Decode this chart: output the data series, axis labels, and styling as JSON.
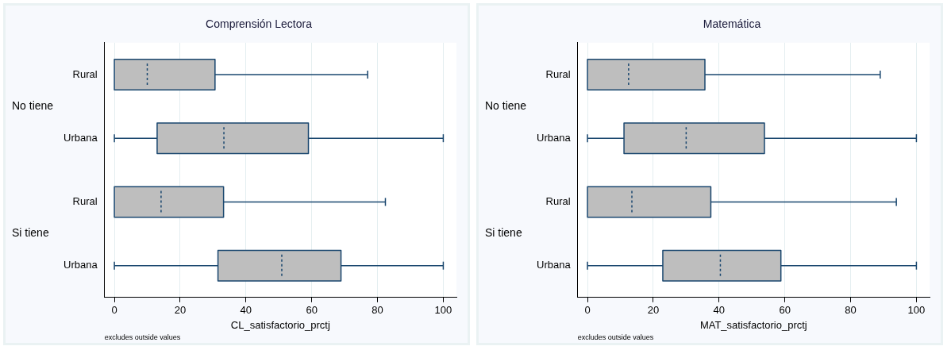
{
  "chart_data": [
    {
      "type": "box",
      "orientation": "horizontal",
      "title": "Comprensión Lectora",
      "xlabel": "CL_satisfactorio_prctj",
      "categories": [
        "Rural",
        "Urbana",
        "Rural",
        "Urbana"
      ],
      "color": "#bebebe",
      "boxes": [
        {
          "low": 0,
          "q1": 0,
          "median": 10,
          "q3": 30.6,
          "high": 77
        },
        {
          "low": 0,
          "q1": 13,
          "median": 33.3,
          "q3": 59,
          "high": 100
        },
        {
          "low": 0,
          "q1": 0,
          "median": 14.2,
          "q3": 33.2,
          "high": 82.4
        },
        {
          "low": 0,
          "q1": 31.5,
          "median": 50.9,
          "q3": 68.9,
          "high": 100
        }
      ],
      "xlim": [
        -3,
        104
      ],
      "xticks": [
        0,
        20,
        40,
        60,
        80,
        100
      ],
      "grid": "x",
      "legend": false,
      "annotations": [
        "No tiene",
        "Si tiene",
        "excludes outside values"
      ]
    },
    {
      "type": "box",
      "orientation": "horizontal",
      "title": "Matemática",
      "xlabel": "MAT_satisfactorio_prctj",
      "categories": [
        "Rural",
        "Urbana",
        "Rural",
        "Urbana"
      ],
      "color": "#bebebe",
      "boxes": [
        {
          "low": 0,
          "q1": 0,
          "median": 12.5,
          "q3": 35.7,
          "high": 89
        },
        {
          "low": 0,
          "q1": 11.1,
          "median": 30,
          "q3": 53.8,
          "high": 100
        },
        {
          "low": 0,
          "q1": 0,
          "median": 13.5,
          "q3": 37.5,
          "high": 93.9
        },
        {
          "low": 0,
          "q1": 22.9,
          "median": 40.4,
          "q3": 58.8,
          "high": 100
        }
      ],
      "xlim": [
        -3,
        104
      ],
      "xticks": [
        0,
        20,
        40,
        60,
        80,
        100
      ],
      "grid": "x",
      "legend": false,
      "annotations": [
        "No tiene",
        "Si tiene",
        "excludes outside values"
      ]
    }
  ]
}
